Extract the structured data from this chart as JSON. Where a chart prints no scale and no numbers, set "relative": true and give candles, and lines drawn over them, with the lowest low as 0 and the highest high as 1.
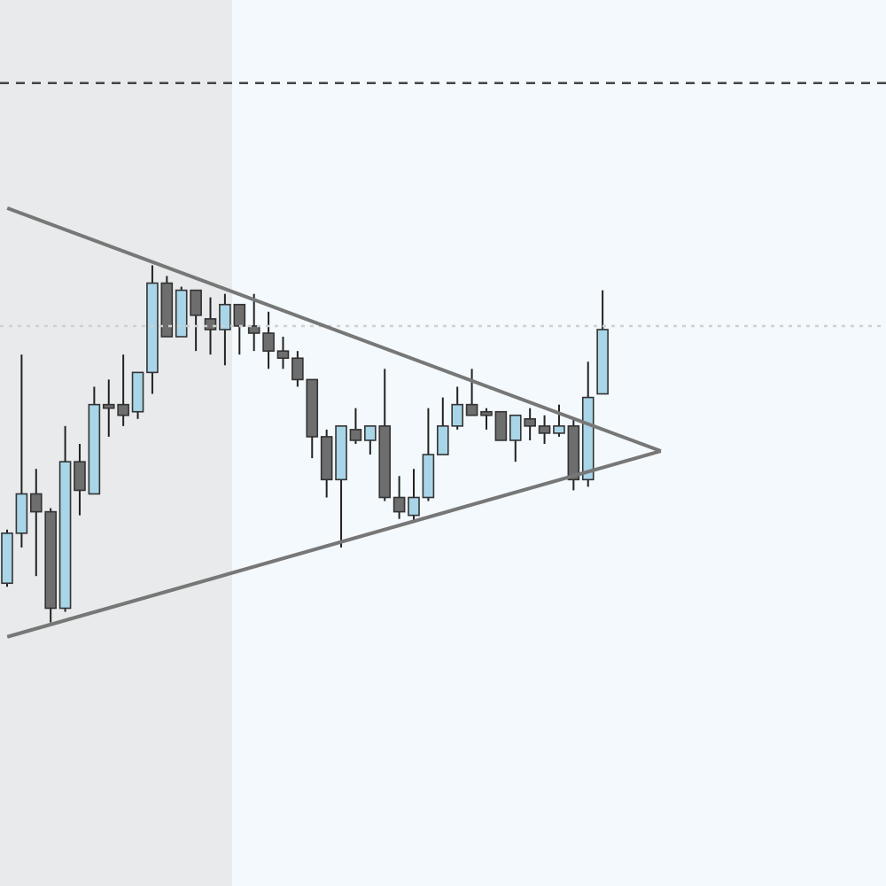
{
  "chart_data": {
    "type": "candlestick",
    "relative": true,
    "categories": [
      null,
      null,
      null,
      null,
      null,
      null,
      null,
      null,
      null,
      null,
      null,
      null,
      null,
      null,
      null,
      null,
      null,
      null,
      null,
      null,
      null,
      null,
      null,
      null,
      null,
      null,
      null,
      null,
      null,
      null,
      null,
      null,
      null,
      null,
      null,
      null,
      null,
      null,
      null,
      null,
      null,
      null,
      null,
      null,
      null,
      null,
      null,
      null,
      null,
      null,
      null,
      null,
      null,
      null,
      null,
      null,
      null,
      null,
      null,
      null,
      null
    ],
    "ohlc": [
      [
        0.11,
        0.26,
        0.1,
        0.25
      ],
      [
        0.25,
        0.75,
        0.21,
        0.36
      ],
      [
        0.36,
        0.43,
        0.13,
        0.31
      ],
      [
        0.31,
        0.32,
        0,
        0.04
      ],
      [
        0.04,
        0.55,
        0.03,
        0.45
      ],
      [
        0.45,
        0.5,
        0.3,
        0.37
      ],
      [
        0.36,
        0.66,
        0.36,
        0.61
      ],
      [
        0.61,
        0.68,
        0.52,
        0.6
      ],
      [
        0.61,
        0.75,
        0.55,
        0.58
      ],
      [
        0.59,
        0.7,
        0.57,
        0.7
      ],
      [
        0.7,
        1,
        0.64,
        0.95
      ],
      [
        0.95,
        0.97,
        0.8,
        0.8
      ],
      [
        0.8,
        0.94,
        0.8,
        0.93
      ],
      [
        0.93,
        0.93,
        0.76,
        0.86
      ],
      [
        0.85,
        0.91,
        0.75,
        0.82
      ],
      [
        0.82,
        0.92,
        0.72,
        0.89
      ],
      [
        0.89,
        0.89,
        0.75,
        0.83
      ],
      [
        0.83,
        0.92,
        0.76,
        0.81
      ],
      [
        0.81,
        0.87,
        0.71,
        0.76
      ],
      [
        0.76,
        0.8,
        0.71,
        0.74
      ],
      [
        0.74,
        0.76,
        0.66,
        0.68
      ],
      [
        0.68,
        0.68,
        0.46,
        0.52
      ],
      [
        0.52,
        0.54,
        0.35,
        0.4
      ],
      [
        0.4,
        0.55,
        0.21,
        0.55
      ],
      [
        0.54,
        0.6,
        0.5,
        0.51
      ],
      [
        0.51,
        0.55,
        0.47,
        0.55
      ],
      [
        0.55,
        0.71,
        0.34,
        0.35
      ],
      [
        0.35,
        0.41,
        0.29,
        0.31
      ],
      [
        0.3,
        0.43,
        0.28,
        0.35
      ],
      [
        0.35,
        0.6,
        0.34,
        0.47
      ],
      [
        0.47,
        0.63,
        0.47,
        0.55
      ],
      [
        0.55,
        0.66,
        0.54,
        0.61
      ],
      [
        0.61,
        0.71,
        0.58,
        0.58
      ],
      [
        0.59,
        0.6,
        0.54,
        0.58
      ],
      [
        0.59,
        0.59,
        0.51,
        0.51
      ],
      [
        0.51,
        0.58,
        0.45,
        0.58
      ],
      [
        0.57,
        0.6,
        0.51,
        0.55
      ],
      [
        0.55,
        0.58,
        0.5,
        0.53
      ],
      [
        0.53,
        0.61,
        0.52,
        0.55
      ],
      [
        0.55,
        0.57,
        0.37,
        0.4
      ],
      [
        0.4,
        0.73,
        0.38,
        0.63
      ],
      [
        0.64,
        0.93,
        0.64,
        0.82
      ],
      null,
      null,
      null,
      null,
      null,
      null,
      null,
      null,
      null,
      null,
      null,
      null,
      null,
      null,
      null,
      null,
      null,
      null,
      null
    ],
    "colors": [
      "#a9d5e8",
      "#a9d5e8",
      "#6e6e6e",
      "#6e6e6e",
      "#a9d5e8",
      "#6e6e6e",
      "#a9d5e8",
      "#6e6e6e",
      "#6e6e6e",
      "#a9d5e8",
      "#a9d5e8",
      "#6e6e6e",
      "#a9d5e8",
      "#6e6e6e",
      "#6e6e6e",
      "#a9d5e8",
      "#6e6e6e",
      "#6e6e6e",
      "#6e6e6e",
      "#6e6e6e",
      "#6e6e6e",
      "#6e6e6e",
      "#6e6e6e",
      "#a9d5e8",
      "#6e6e6e",
      "#a9d5e8",
      "#6e6e6e",
      "#6e6e6e",
      "#a9d5e8",
      "#a9d5e8",
      "#a9d5e8",
      "#a9d5e8",
      "#6e6e6e",
      "#6e6e6e",
      "#6e6e6e",
      "#a9d5e8",
      "#6e6e6e",
      "#6e6e6e",
      "#a9d5e8",
      "#6e6e6e",
      "#a9d5e8",
      "#a9d5e8",
      null,
      null,
      null,
      null,
      null,
      null,
      null,
      null,
      null,
      null,
      null,
      null,
      null,
      null,
      null,
      null,
      null,
      null,
      null
    ],
    "series": [
      {
        "type": "line",
        "color": "#777777",
        "values": [
          1.16,
          null,
          null,
          null,
          null,
          null,
          null,
          null,
          null,
          null,
          null,
          null,
          null,
          null,
          null,
          null,
          null,
          null,
          null,
          null,
          null,
          null,
          null,
          null,
          null,
          null,
          null,
          null,
          null,
          null,
          null,
          null,
          null,
          null,
          null,
          null,
          null,
          null,
          null,
          null,
          null,
          null,
          null,
          null,
          null,
          0.48,
          null,
          null,
          null,
          null,
          null,
          null,
          null,
          null,
          null,
          null,
          null,
          null,
          null,
          null,
          null
        ]
      },
      {
        "type": "line",
        "color": "#777777",
        "values": [
          -0.04,
          null,
          null,
          null,
          null,
          null,
          null,
          null,
          null,
          null,
          null,
          null,
          null,
          null,
          null,
          null,
          null,
          null,
          null,
          null,
          null,
          null,
          null,
          null,
          null,
          null,
          null,
          null,
          null,
          null,
          null,
          null,
          null,
          null,
          null,
          null,
          null,
          null,
          null,
          null,
          null,
          null,
          null,
          null,
          null,
          0.48,
          null,
          null,
          null,
          null,
          null,
          null,
          null,
          null,
          null,
          null,
          null,
          null,
          null,
          null,
          null
        ]
      }
    ],
    "ref_lines": [
      {
        "axis": "y",
        "value": 1.51,
        "color": "#444444",
        "line_style": "dashed"
      },
      {
        "axis": "y",
        "value": 0.83,
        "color": "#d0d0d0",
        "line_style": "dotted"
      }
    ]
  }
}
